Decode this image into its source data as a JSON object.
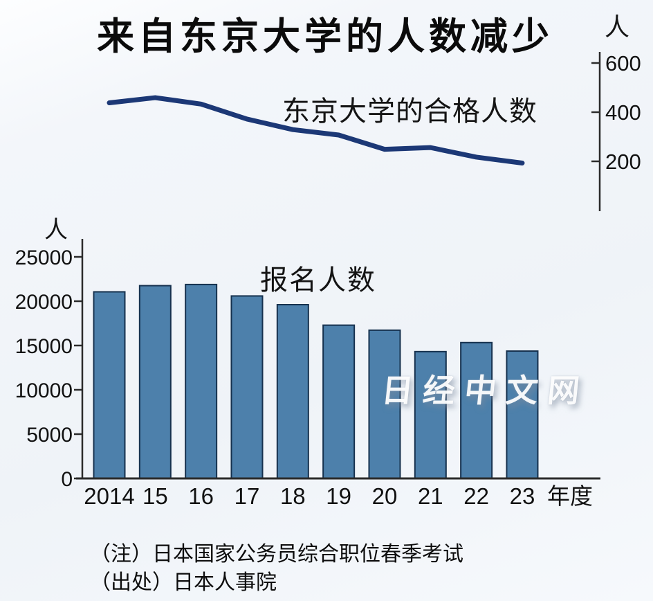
{
  "page": {
    "title": "来自东京大学的人数减少",
    "watermark": "日经中文网",
    "notes": [
      "（注）日本国家公务员综合职位春季考试",
      "（出处）日本人事院"
    ]
  },
  "colors": {
    "background": "#f2f5f9",
    "bar_fill": "#4d80ab",
    "bar_border": "#16314e",
    "line": "#1c3876",
    "axis": "#2b2b2b",
    "text": "#111111",
    "watermark": "#ffffff"
  },
  "chart_data": [
    {
      "type": "line",
      "title": "东京大学的合格人数",
      "unit_label": "人",
      "categories": [
        "2014",
        "15",
        "16",
        "17",
        "18",
        "19",
        "20",
        "21",
        "22",
        "23"
      ],
      "values": [
        438,
        459,
        433,
        372,
        329,
        307,
        249,
        256,
        217,
        193
      ],
      "y_ticks": [
        600,
        400,
        200
      ],
      "ylim": [
        0,
        650
      ],
      "axis_side": "right",
      "grid": false,
      "legend_position": "inline-label"
    },
    {
      "type": "bar",
      "title": "报名人数",
      "unit_label": "人",
      "xlabel": "年度",
      "categories": [
        "2014",
        "15",
        "16",
        "17",
        "18",
        "19",
        "20",
        "21",
        "22",
        "23"
      ],
      "values": [
        21056,
        21754,
        21883,
        20591,
        19609,
        17295,
        16730,
        14310,
        15330,
        14372
      ],
      "y_ticks": [
        25000,
        20000,
        15000,
        10000,
        5000,
        0
      ],
      "ylim": [
        0,
        27000
      ],
      "grid": false,
      "legend_position": "inline-label"
    }
  ]
}
